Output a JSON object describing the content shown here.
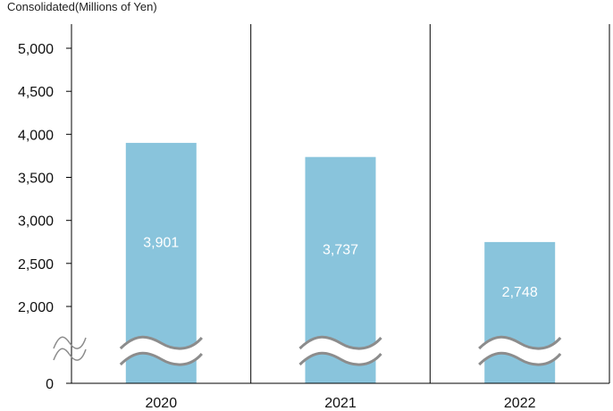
{
  "chart_data": {
    "type": "bar",
    "unit_label": "Consolidated(Millions of Yen)",
    "categories": [
      "2020",
      "2021",
      "2022"
    ],
    "values": [
      3901,
      3737,
      2748
    ],
    "value_labels": [
      "3,901",
      "3,737",
      "2,748"
    ],
    "y_ticks": [
      {
        "value": 0,
        "label": "0"
      },
      {
        "value": 2000,
        "label": "2,000"
      },
      {
        "value": 2500,
        "label": "2,500"
      },
      {
        "value": 3000,
        "label": "3,000"
      },
      {
        "value": 3500,
        "label": "3,500"
      },
      {
        "value": 4000,
        "label": "4,000"
      },
      {
        "value": 4500,
        "label": "4,500"
      },
      {
        "value": 5000,
        "label": "5,000"
      }
    ],
    "ylim": [
      0,
      5250
    ],
    "axis_break": true,
    "grid": false,
    "colors": {
      "bar": "#89c4dc",
      "label": "#ffffff",
      "axis": "#000000",
      "break": "#8c8c8c"
    }
  }
}
